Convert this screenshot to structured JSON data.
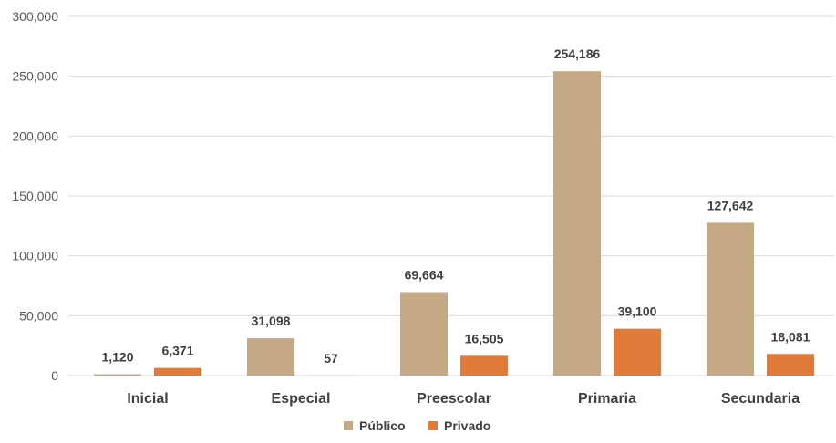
{
  "chart_data": {
    "type": "bar",
    "title": "",
    "xlabel": "",
    "ylabel": "",
    "categories": [
      "Inicial",
      "Especial",
      "Preescolar",
      "Primaria",
      "Secundaria"
    ],
    "series": [
      {
        "name": "Público",
        "color": "#c4a984",
        "values": [
          1120,
          31098,
          69664,
          254186,
          127642
        ]
      },
      {
        "name": "Privado",
        "color": "#e07b39",
        "values": [
          6371,
          57,
          16505,
          39100,
          18081
        ]
      }
    ],
    "data_labels": {
      "Público": [
        "1,120",
        "31,098",
        "69,664",
        "254,186",
        "127,642"
      ],
      "Privado": [
        "6,371",
        "57",
        "16,505",
        "39,100",
        "18,081"
      ]
    },
    "ylim": [
      0,
      300000
    ],
    "yticks": [
      0,
      50000,
      100000,
      150000,
      200000,
      250000,
      300000
    ],
    "ytick_labels": [
      "0",
      "50,000",
      "100,000",
      "150,000",
      "200,000",
      "250,000",
      "300,000"
    ],
    "grid": true,
    "legend_position": "bottom"
  }
}
